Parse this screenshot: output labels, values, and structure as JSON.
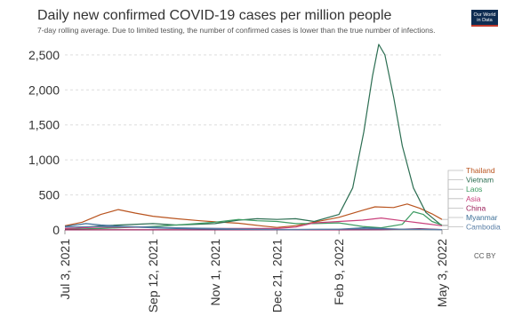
{
  "header": {
    "title": "Daily new confirmed COVID-19 cases per million people",
    "subtitle": "7-day rolling average. Due to limited testing, the number of confirmed cases is lower than the true number of infections.",
    "logo_text": "Our World in Data",
    "license": "CC BY"
  },
  "chart_data": {
    "type": "line",
    "title": "Daily new confirmed COVID-19 cases per million people",
    "subtitle": "7-day rolling average. Due to limited testing, the number of confirmed cases is lower than the true number of infections.",
    "xlabel": "",
    "ylabel": "",
    "x_range": [
      "2021-07-03",
      "2022-05-03"
    ],
    "ylim": [
      0,
      2650
    ],
    "y_ticks": [
      0,
      500,
      1000,
      1500,
      2000,
      2500
    ],
    "y_tick_labels": [
      "0",
      "500",
      "1,000",
      "1,500",
      "2,000",
      "2,500"
    ],
    "x_ticks": [
      "2021-07-03",
      "2021-09-12",
      "2021-11-01",
      "2021-12-21",
      "2022-02-09",
      "2022-05-03"
    ],
    "x_tick_labels": [
      "Jul 3, 2021",
      "Sep 12, 2021",
      "Nov 1, 2021",
      "Dec 21, 2021",
      "Feb 9, 2022",
      "May 3, 2022"
    ],
    "grid": "horizontal dotted",
    "legend": "right, labels at line ends",
    "series": [
      {
        "name": "Thailand",
        "color": "#b9541f",
        "points": [
          [
            "2021-07-03",
            60
          ],
          [
            "2021-07-17",
            110
          ],
          [
            "2021-08-01",
            220
          ],
          [
            "2021-08-15",
            290
          ],
          [
            "2021-08-29",
            240
          ],
          [
            "2021-09-12",
            195
          ],
          [
            "2021-10-01",
            160
          ],
          [
            "2021-10-20",
            130
          ],
          [
            "2021-11-01",
            115
          ],
          [
            "2021-11-20",
            95
          ],
          [
            "2021-12-10",
            55
          ],
          [
            "2021-12-21",
            35
          ],
          [
            "2022-01-05",
            60
          ],
          [
            "2022-01-20",
            110
          ],
          [
            "2022-02-09",
            180
          ],
          [
            "2022-02-28",
            280
          ],
          [
            "2022-03-10",
            330
          ],
          [
            "2022-03-25",
            320
          ],
          [
            "2022-04-05",
            370
          ],
          [
            "2022-04-15",
            310
          ],
          [
            "2022-04-25",
            230
          ],
          [
            "2022-05-03",
            150
          ]
        ]
      },
      {
        "name": "Vietnam",
        "color": "#2c6e52",
        "points": [
          [
            "2021-07-03",
            10
          ],
          [
            "2021-08-01",
            60
          ],
          [
            "2021-09-12",
            90
          ],
          [
            "2021-10-01",
            70
          ],
          [
            "2021-11-01",
            90
          ],
          [
            "2021-11-20",
            140
          ],
          [
            "2021-12-05",
            160
          ],
          [
            "2021-12-21",
            150
          ],
          [
            "2022-01-05",
            160
          ],
          [
            "2022-01-20",
            120
          ],
          [
            "2022-02-09",
            220
          ],
          [
            "2022-02-20",
            600
          ],
          [
            "2022-03-01",
            1400
          ],
          [
            "2022-03-08",
            2200
          ],
          [
            "2022-03-13",
            2650
          ],
          [
            "2022-03-18",
            2500
          ],
          [
            "2022-03-25",
            1900
          ],
          [
            "2022-04-01",
            1200
          ],
          [
            "2022-04-10",
            600
          ],
          [
            "2022-04-20",
            250
          ],
          [
            "2022-05-03",
            60
          ]
        ]
      },
      {
        "name": "Laos",
        "color": "#3d9b62",
        "points": [
          [
            "2021-07-03",
            10
          ],
          [
            "2021-08-01",
            20
          ],
          [
            "2021-09-12",
            50
          ],
          [
            "2021-10-01",
            70
          ],
          [
            "2021-11-01",
            110
          ],
          [
            "2021-11-20",
            150
          ],
          [
            "2021-12-05",
            130
          ],
          [
            "2021-12-21",
            120
          ],
          [
            "2022-01-05",
            90
          ],
          [
            "2022-01-20",
            90
          ],
          [
            "2022-02-09",
            100
          ],
          [
            "2022-02-28",
            50
          ],
          [
            "2022-03-15",
            30
          ],
          [
            "2022-04-01",
            80
          ],
          [
            "2022-04-10",
            260
          ],
          [
            "2022-04-18",
            220
          ],
          [
            "2022-04-25",
            120
          ],
          [
            "2022-05-03",
            70
          ]
        ]
      },
      {
        "name": "Asia",
        "color": "#c93f7b",
        "points": [
          [
            "2021-07-03",
            20
          ],
          [
            "2021-08-01",
            40
          ],
          [
            "2021-09-12",
            35
          ],
          [
            "2021-10-01",
            25
          ],
          [
            "2021-11-01",
            20
          ],
          [
            "2021-12-21",
            20
          ],
          [
            "2022-01-05",
            40
          ],
          [
            "2022-01-20",
            100
          ],
          [
            "2022-02-09",
            120
          ],
          [
            "2022-02-28",
            140
          ],
          [
            "2022-03-15",
            170
          ],
          [
            "2022-04-01",
            130
          ],
          [
            "2022-04-15",
            100
          ],
          [
            "2022-05-03",
            60
          ]
        ]
      },
      {
        "name": "China",
        "color": "#9a1d58",
        "points": [
          [
            "2021-07-03",
            1
          ],
          [
            "2021-12-21",
            1
          ],
          [
            "2022-03-15",
            2
          ],
          [
            "2022-04-15",
            18
          ],
          [
            "2022-05-03",
            5
          ]
        ]
      },
      {
        "name": "Myanmar",
        "color": "#3b6e96",
        "points": [
          [
            "2021-07-03",
            50
          ],
          [
            "2021-07-20",
            90
          ],
          [
            "2021-08-01",
            70
          ],
          [
            "2021-08-20",
            50
          ],
          [
            "2021-09-12",
            30
          ],
          [
            "2021-10-01",
            20
          ],
          [
            "2021-11-01",
            10
          ],
          [
            "2021-12-21",
            5
          ],
          [
            "2022-02-09",
            10
          ],
          [
            "2022-03-01",
            30
          ],
          [
            "2022-04-01",
            10
          ],
          [
            "2022-05-03",
            5
          ]
        ]
      },
      {
        "name": "Cambodia",
        "color": "#5a7fa6",
        "points": [
          [
            "2021-07-03",
            40
          ],
          [
            "2021-08-01",
            50
          ],
          [
            "2021-09-01",
            45
          ],
          [
            "2021-10-01",
            30
          ],
          [
            "2021-11-01",
            20
          ],
          [
            "2021-12-01",
            10
          ],
          [
            "2022-01-01",
            5
          ],
          [
            "2022-02-09",
            10
          ],
          [
            "2022-03-01",
            15
          ],
          [
            "2022-04-01",
            10
          ],
          [
            "2022-05-03",
            5
          ]
        ]
      }
    ]
  }
}
